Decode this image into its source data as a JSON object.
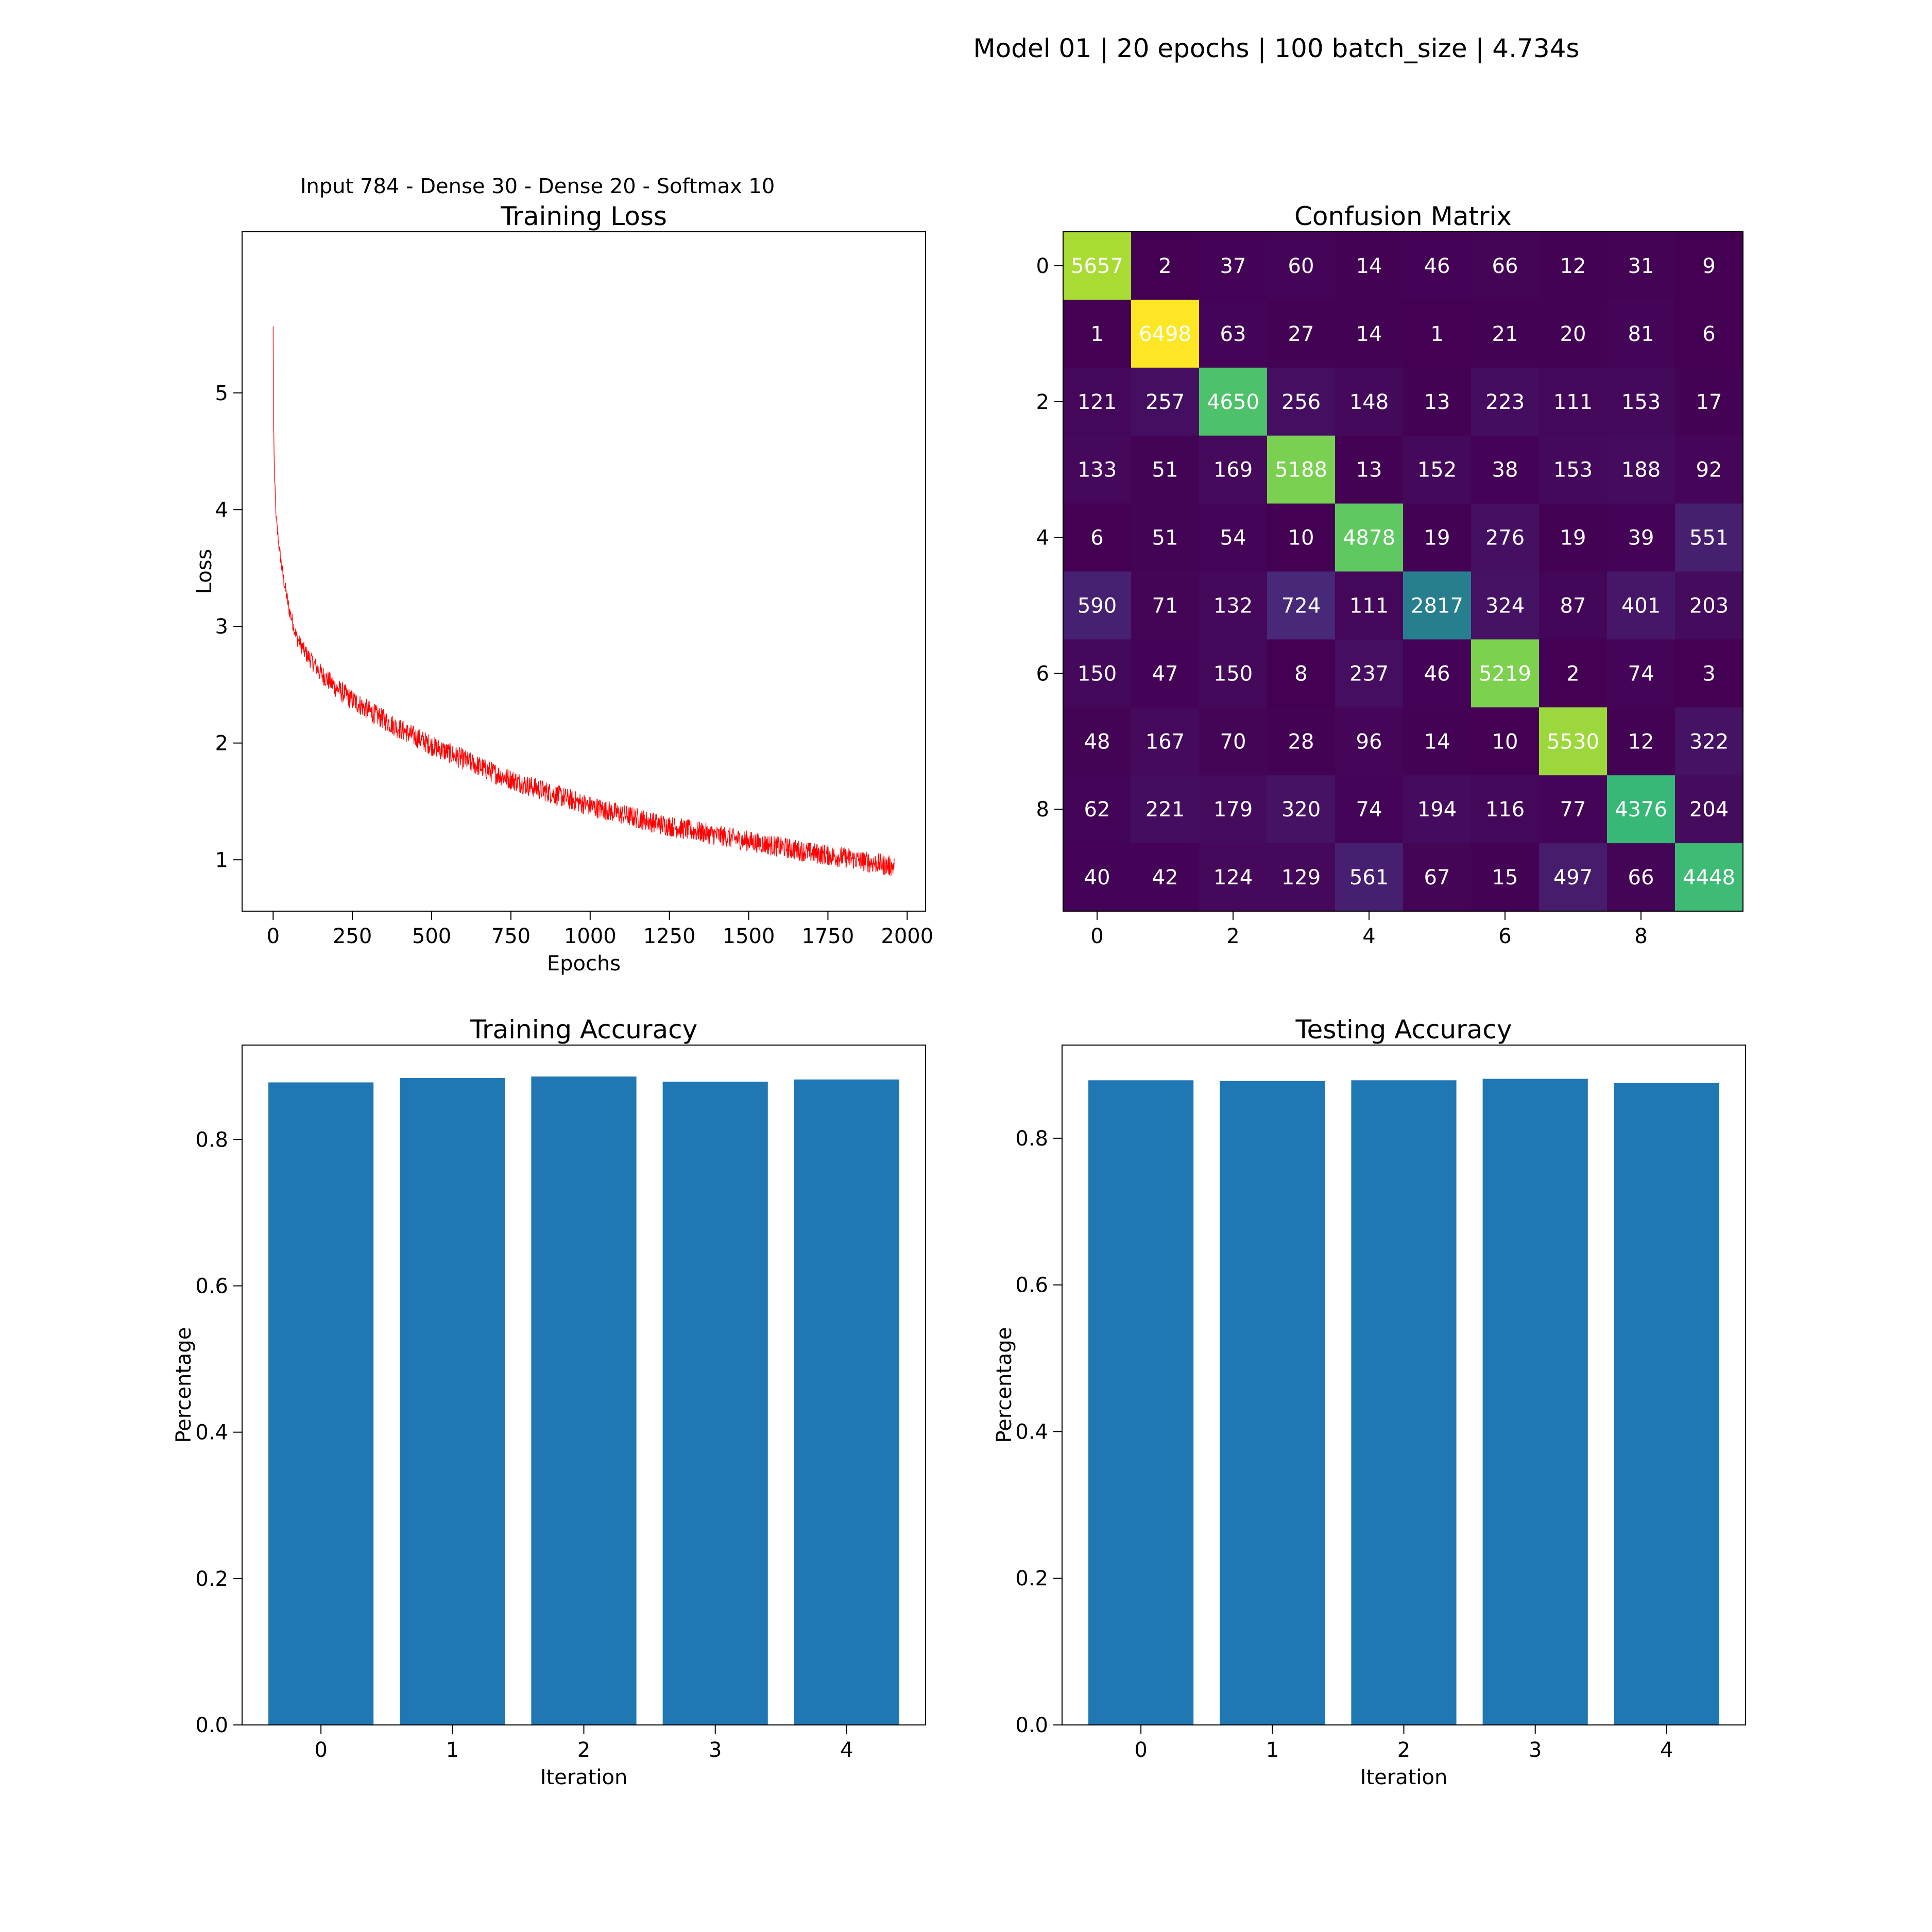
{
  "suptitle": "Model 01 | 20 epochs | 100 batch_size | 4.734s",
  "colors": {
    "loss_line": "#ff0000",
    "bar": "#1f77b4",
    "cm_text_light": "#ffffff",
    "cm_text_dark": "#000000"
  },
  "chart_data": [
    {
      "id": "training_loss",
      "type": "line",
      "subtitle": "Input 784 - Dense 30 - Dense 20 - Softmax 10",
      "title": "Training Loss",
      "xlabel": "Epochs",
      "ylabel": "Loss",
      "xlim": [
        -98,
        2058
      ],
      "ylim": [
        0.56,
        6.38
      ],
      "xticks": [
        0,
        250,
        500,
        750,
        1000,
        1250,
        1500,
        1750,
        2000
      ],
      "yticks": [
        1,
        2,
        3,
        4,
        5
      ],
      "series": [
        {
          "values_note_points": [
            [
              0,
              5.57
            ],
            [
              1,
              4.9
            ],
            [
              3,
              4.45
            ],
            [
              5,
              4.22
            ],
            [
              10,
              3.9
            ],
            [
              20,
              3.65
            ],
            [
              30,
              3.45
            ],
            [
              50,
              3.15
            ],
            [
              75,
              2.9
            ],
            [
              100,
              2.78
            ],
            [
              150,
              2.6
            ],
            [
              200,
              2.47
            ],
            [
              250,
              2.37
            ],
            [
              300,
              2.28
            ],
            [
              400,
              2.12
            ],
            [
              500,
              1.98
            ],
            [
              600,
              1.86
            ],
            [
              700,
              1.74
            ],
            [
              800,
              1.64
            ],
            [
              900,
              1.55
            ],
            [
              1000,
              1.46
            ],
            [
              1100,
              1.39
            ],
            [
              1200,
              1.32
            ],
            [
              1300,
              1.26
            ],
            [
              1400,
              1.21
            ],
            [
              1500,
              1.16
            ],
            [
              1600,
              1.11
            ],
            [
              1700,
              1.06
            ],
            [
              1800,
              1.02
            ],
            [
              1900,
              0.97
            ],
            [
              1960,
              0.94
            ]
          ],
          "noise_amplitude": 0.09,
          "n_points": 1960
        }
      ],
      "grid": false
    },
    {
      "id": "confusion_matrix",
      "type": "heatmap",
      "title": "Confusion Matrix",
      "xticks": [
        0,
        2,
        4,
        6,
        8
      ],
      "yticks": [
        0,
        2,
        4,
        6,
        8
      ],
      "colormap": "viridis",
      "matrix": [
        [
          5657,
          2,
          37,
          60,
          14,
          46,
          66,
          12,
          31,
          9
        ],
        [
          1,
          6498,
          63,
          27,
          14,
          1,
          21,
          20,
          81,
          6
        ],
        [
          121,
          257,
          4650,
          256,
          148,
          13,
          223,
          111,
          153,
          17
        ],
        [
          133,
          51,
          169,
          5188,
          13,
          152,
          38,
          153,
          188,
          92
        ],
        [
          6,
          51,
          54,
          10,
          4878,
          19,
          276,
          19,
          39,
          551
        ],
        [
          590,
          71,
          132,
          724,
          111,
          2817,
          324,
          87,
          401,
          203
        ],
        [
          150,
          47,
          150,
          8,
          237,
          46,
          5219,
          2,
          74,
          3
        ],
        [
          48,
          167,
          70,
          28,
          96,
          14,
          10,
          5530,
          12,
          322
        ],
        [
          62,
          221,
          179,
          320,
          74,
          194,
          116,
          77,
          4376,
          204
        ],
        [
          40,
          42,
          124,
          129,
          561,
          67,
          15,
          497,
          66,
          4448
        ]
      ]
    },
    {
      "id": "training_accuracy",
      "type": "bar",
      "title": "Training Accuracy",
      "xlabel": "Iteration",
      "ylabel": "Percentage",
      "categories": [
        "0",
        "1",
        "2",
        "3",
        "4"
      ],
      "values": [
        0.878,
        0.884,
        0.886,
        0.879,
        0.882
      ],
      "ylim": [
        0,
        0.929
      ],
      "yticks": [
        0.0,
        0.2,
        0.4,
        0.6,
        0.8
      ]
    },
    {
      "id": "testing_accuracy",
      "type": "bar",
      "title": "Testing Accuracy",
      "xlabel": "Iteration",
      "ylabel": "Percentage",
      "categories": [
        "0",
        "1",
        "2",
        "3",
        "4"
      ],
      "values": [
        0.879,
        0.878,
        0.879,
        0.881,
        0.875
      ],
      "ylim": [
        0,
        0.927
      ],
      "yticks": [
        0.0,
        0.2,
        0.4,
        0.6,
        0.8
      ]
    }
  ]
}
